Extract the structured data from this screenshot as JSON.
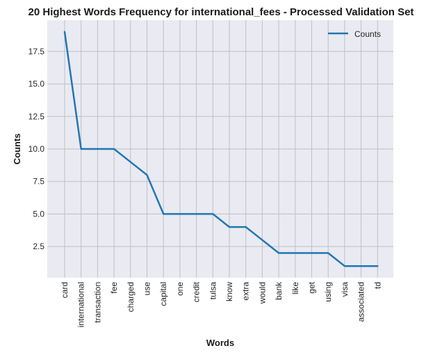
{
  "colors": {
    "plot_background": "#eaeaf2",
    "grid": "#bfbfc4",
    "series_line": "#1f77b4"
  },
  "chart_data": {
    "type": "line",
    "title": "20 Highest Words Frequency for international_fees - Processed Validation Set",
    "xlabel": "Words",
    "ylabel": "Counts",
    "categories": [
      "card",
      "international",
      "transaction",
      "fee",
      "charged",
      "use",
      "capital",
      "one",
      "credit",
      "tulsa",
      "know",
      "extra",
      "would",
      "bank",
      "like",
      "get",
      "using",
      "visa",
      "associated",
      "td"
    ],
    "series": [
      {
        "name": "Counts",
        "values": [
          19,
          10,
          10,
          10,
          9,
          8,
          5,
          5,
          5,
          5,
          4,
          4,
          3,
          2,
          2,
          2,
          2,
          1,
          1,
          1
        ]
      }
    ],
    "yticks": [
      2.5,
      5.0,
      7.5,
      10.0,
      12.5,
      15.0,
      17.5
    ],
    "ytick_labels": [
      "2.5",
      "5.0",
      "7.5",
      "10.0",
      "12.5",
      "15.0",
      "17.5"
    ],
    "ylim": [
      0.1,
      19.9
    ],
    "grid": true,
    "legend_position": "top-right"
  }
}
